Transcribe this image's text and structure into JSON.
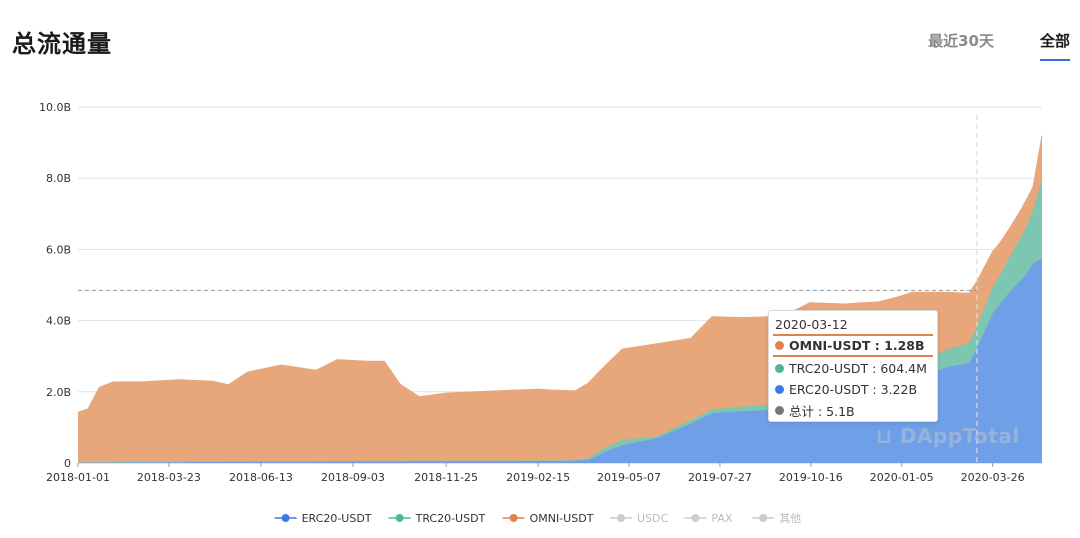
{
  "header": {
    "title": "总流通量",
    "tabs": [
      {
        "label": "最近30天",
        "active": false
      },
      {
        "label": "全部",
        "active": true
      }
    ]
  },
  "chart_data": {
    "type": "area",
    "stacked": true,
    "x_start": "2018-01-01",
    "x_end": "2020-05-09",
    "x_ticks": [
      "2018-01-01",
      "2018-03-23",
      "2018-06-13",
      "2018-09-03",
      "2018-11-25",
      "2019-02-15",
      "2019-05-07",
      "2019-07-27",
      "2019-10-16",
      "2020-01-05",
      "2020-03-26"
    ],
    "y_ticks": [
      "0",
      "2.0B",
      "4.0B",
      "6.0B",
      "8.0B",
      "10.0B"
    ],
    "ylim": [
      0,
      10
    ],
    "y_unit": "B",
    "grid": true,
    "legend_position": "bottom",
    "series": [
      {
        "name": "ERC20-USDT",
        "color": "#3d7be3",
        "fill": "#6f9fe6",
        "active": true,
        "points": [
          [
            "2018-01-01",
            0.02
          ],
          [
            "2018-06-01",
            0.05
          ],
          [
            "2019-03-01",
            0.07
          ],
          [
            "2019-04-01",
            0.08
          ],
          [
            "2019-04-15",
            0.3
          ],
          [
            "2019-05-01",
            0.5
          ],
          [
            "2019-06-01",
            0.7
          ],
          [
            "2019-07-01",
            1.1
          ],
          [
            "2019-07-20",
            1.4
          ],
          [
            "2019-08-15",
            1.45
          ],
          [
            "2019-09-20",
            1.5
          ],
          [
            "2019-10-15",
            1.6
          ],
          [
            "2019-11-15",
            1.8
          ],
          [
            "2019-12-15",
            2.1
          ],
          [
            "2020-01-15",
            2.3
          ],
          [
            "2020-02-15",
            2.7
          ],
          [
            "2020-03-05",
            2.8
          ],
          [
            "2020-03-12",
            3.22
          ],
          [
            "2020-03-26",
            4.2
          ],
          [
            "2020-04-10",
            4.8
          ],
          [
            "2020-04-25",
            5.3
          ],
          [
            "2020-05-01",
            5.6
          ],
          [
            "2020-05-09",
            5.75
          ]
        ]
      },
      {
        "name": "TRC20-USDT",
        "color": "#4fb5a0",
        "fill": "#7cc6b2",
        "active": true,
        "points": [
          [
            "2018-01-01",
            0
          ],
          [
            "2019-03-20",
            0
          ],
          [
            "2019-04-10",
            0.1
          ],
          [
            "2019-05-01",
            0.15
          ],
          [
            "2019-06-01",
            0.05
          ],
          [
            "2019-07-01",
            0.1
          ],
          [
            "2019-08-01",
            0.12
          ],
          [
            "2019-09-01",
            0.15
          ],
          [
            "2019-10-15",
            0.2
          ],
          [
            "2019-12-01",
            0.3
          ],
          [
            "2020-01-01",
            0.35
          ],
          [
            "2020-02-01",
            0.45
          ],
          [
            "2020-03-01",
            0.55
          ],
          [
            "2020-03-12",
            0.6044
          ],
          [
            "2020-04-01",
            0.8
          ],
          [
            "2020-04-20",
            1.2
          ],
          [
            "2020-05-01",
            1.5
          ],
          [
            "2020-05-09",
            2.2
          ]
        ]
      },
      {
        "name": "OMNI-USDT",
        "color": "#e0824b",
        "fill": "#e8a77a",
        "active": true,
        "points": [
          [
            "2018-01-01",
            1.4
          ],
          [
            "2018-01-10",
            1.5
          ],
          [
            "2018-01-20",
            2.1
          ],
          [
            "2018-02-01",
            2.25
          ],
          [
            "2018-03-01",
            2.25
          ],
          [
            "2018-04-01",
            2.3
          ],
          [
            "2018-05-01",
            2.25
          ],
          [
            "2018-05-15",
            2.15
          ],
          [
            "2018-06-01",
            2.5
          ],
          [
            "2018-07-01",
            2.7
          ],
          [
            "2018-08-01",
            2.55
          ],
          [
            "2018-08-20",
            2.85
          ],
          [
            "2018-09-15",
            2.8
          ],
          [
            "2018-10-01",
            2.8
          ],
          [
            "2018-10-15",
            2.15
          ],
          [
            "2018-11-01",
            1.8
          ],
          [
            "2018-11-25",
            1.9
          ],
          [
            "2019-01-01",
            1.95
          ],
          [
            "2019-02-15",
            2.0
          ],
          [
            "2019-03-20",
            1.95
          ],
          [
            "2019-04-15",
            2.3
          ],
          [
            "2019-05-01",
            2.55
          ],
          [
            "2019-06-01",
            2.6
          ],
          [
            "2019-07-01",
            2.3
          ],
          [
            "2019-07-20",
            2.6
          ],
          [
            "2019-08-15",
            2.5
          ],
          [
            "2019-09-20",
            2.45
          ],
          [
            "2019-10-01",
            2.55
          ],
          [
            "2019-10-15",
            2.7
          ],
          [
            "2019-11-15",
            2.4
          ],
          [
            "2019-12-15",
            2.1
          ],
          [
            "2020-01-15",
            2.1
          ],
          [
            "2020-02-15",
            1.6
          ],
          [
            "2020-03-05",
            1.4
          ],
          [
            "2020-03-12",
            1.28
          ],
          [
            "2020-03-26",
            1.0
          ],
          [
            "2020-04-10",
            0.8
          ],
          [
            "2020-04-25",
            0.75
          ],
          [
            "2020-05-01",
            0.65
          ],
          [
            "2020-05-09",
            1.25
          ]
        ]
      }
    ],
    "inactive_series": [
      {
        "name": "USDC",
        "color": "#cccccc"
      },
      {
        "name": "PAX",
        "color": "#cccccc"
      },
      {
        "name": "其他",
        "color": "#cccccc"
      }
    ],
    "hover": {
      "date": "2020-03-12",
      "crosshair_y": 4.85,
      "tooltip": {
        "date_label": "2020-03-12",
        "rows": [
          {
            "label": "OMNI-USDT : 1.28B",
            "color": "#e0824b",
            "highlight": true
          },
          {
            "label": "TRC20-USDT : 604.4M",
            "color": "#4fb5a0",
            "highlight": false
          },
          {
            "label": "ERC20-USDT : 3.22B",
            "color": "#3d7be3",
            "highlight": false
          },
          {
            "label": "总计 : 5.1B",
            "color": "#777777",
            "highlight": false
          }
        ]
      }
    }
  }
}
